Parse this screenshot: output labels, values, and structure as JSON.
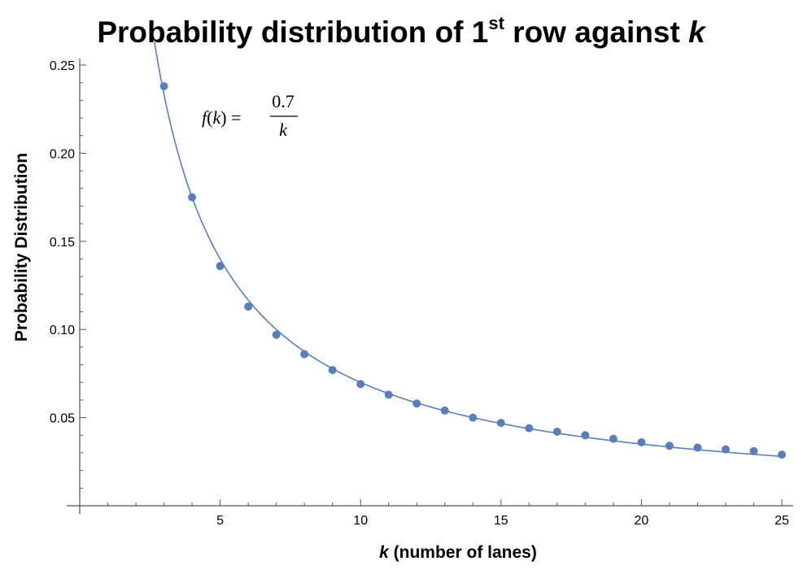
{
  "chart_data": {
    "type": "scatter",
    "title": {
      "prefix": "Probability distribution of 1",
      "superscript": "st",
      "middle": " row against ",
      "variable": "k"
    },
    "xlabel": {
      "variable": "k",
      "rest": " (number of lanes)"
    },
    "ylabel": "Probability Distribution",
    "xlim": [
      0,
      25
    ],
    "ylim": [
      0,
      0.25
    ],
    "x_ticks": [
      5,
      10,
      15,
      20,
      25
    ],
    "x_tick_labels": [
      "5",
      "10",
      "15",
      "20",
      "25"
    ],
    "y_ticks": [
      0.05,
      0.1,
      0.15,
      0.2,
      0.25
    ],
    "y_tick_labels": [
      "0.05",
      "0.10",
      "0.15",
      "0.20",
      "0.25"
    ],
    "grid": false,
    "fit_curve": {
      "formula": "f(k) = 0.7 / k",
      "coefficient": 0.7,
      "color": "#5a7fb8",
      "label": {
        "lhs": "f",
        "arg": "k",
        "eq": "=",
        "numerator": "0.7",
        "denominator": "k"
      }
    },
    "series": [
      {
        "color": "#5a7fb8",
        "x": [
          3,
          4,
          5,
          6,
          7,
          8,
          9,
          10,
          11,
          12,
          13,
          14,
          15,
          16,
          17,
          18,
          19,
          20,
          21,
          22,
          23,
          24,
          25
        ],
        "y": [
          0.238,
          0.175,
          0.136,
          0.113,
          0.097,
          0.086,
          0.077,
          0.069,
          0.063,
          0.058,
          0.054,
          0.05,
          0.047,
          0.044,
          0.042,
          0.04,
          0.038,
          0.036,
          0.034,
          0.033,
          0.032,
          0.031,
          0.029
        ]
      }
    ]
  }
}
